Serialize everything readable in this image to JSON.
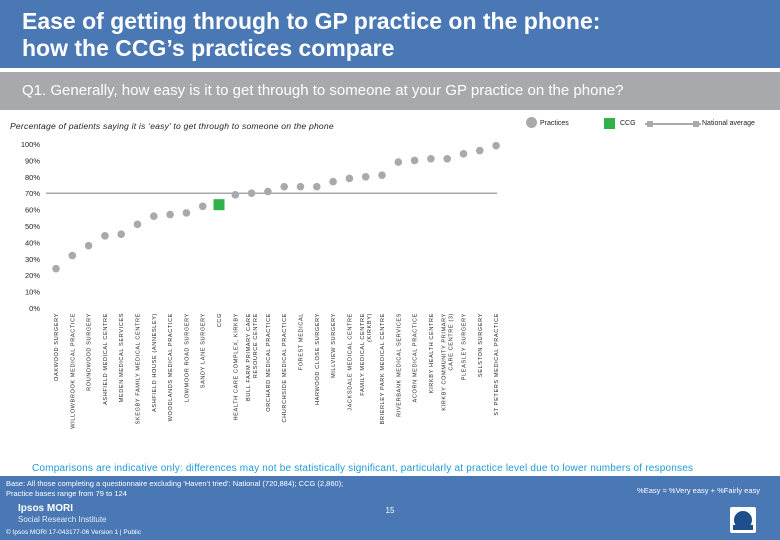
{
  "header": {
    "title_line1": "Ease of getting through to GP practice on the phone:",
    "title_line2": "how the CCG’s practices compare"
  },
  "question": "Q1. Generally, how easy is it to get through to someone at your GP practice on the phone?",
  "subtitle": "Percentage of patients saying it is ‘easy’ to get through to someone on the phone",
  "legend": {
    "practices": "Practices",
    "ccg": "CCG",
    "national": "National average"
  },
  "colors": {
    "practice_dot": "#a7a9ac",
    "ccg_marker": "#2db34a",
    "national_line": "#a7a9ac",
    "header_blue": "#4a78b5",
    "note_blue": "#1a9bd7"
  },
  "chart_data": {
    "type": "scatter",
    "title": "Percentage of patients saying it is ‘easy’ to get through to someone on the phone",
    "ylim": [
      0,
      100
    ],
    "yticks": [
      "0%",
      "10%",
      "20%",
      "30%",
      "40%",
      "50%",
      "60%",
      "70%",
      "80%",
      "90%",
      "100%"
    ],
    "ytick_values": [
      0,
      10,
      20,
      30,
      40,
      50,
      60,
      70,
      80,
      90,
      100
    ],
    "national_average": 70,
    "categories": [
      "OAKWOOD SURGERY",
      "WILLOWBROOK MEDICAL PRACTICE",
      "ROUNDWOOD SURGERY",
      "ASHFIELD MEDICAL CENTRE",
      "MEDEN MEDICAL SERVICES",
      "SKEGBY FAMILY MEDICAL CENTRE",
      "ASHFIELD HOUSE (ANNESLEY)",
      "WOODLANDS MEDICAL PRACTICE",
      "LOWMOOR ROAD SURGERY",
      "SANDY LANE SURGERY",
      "CCG",
      "HEALTH CARE COMPLEX, KIRKBY",
      "BULL FARM PRIMARY CARE RESOURCE CENTRE",
      "ORCHARD MEDICAL PRACTICE",
      "CHURCHSIDE MEDICAL PRACTICE",
      "FOREST MEDICAL",
      "HARWOOD CLOSE SURGERY",
      "MILLVIEW SURGERY",
      "JACKSDALE MEDICAL CENTRE",
      "FAMILY MEDICAL CENTRE (KIRKBY)",
      "BRIERLEY PARK MEDICAL CENTRE",
      "RIVERBANK MEDICAL SERVICES",
      "ACORN MEDICAL PRACTICE",
      "KIRKBY HEALTH CENTRE",
      "KIRKBY COMMUNITY PRIMARY CARE CENTRE (3)",
      "PLEASLEY SURGERY",
      "SELSTON SURGERY",
      "ST PETERS MEDICAL PRACTICE"
    ],
    "values": [
      24,
      32,
      38,
      44,
      45,
      51,
      56,
      57,
      58,
      62,
      63,
      69,
      70,
      71,
      74,
      74,
      74,
      77,
      79,
      80,
      81,
      89,
      90,
      91,
      91,
      94,
      96,
      99
    ],
    "ccg_index": 10
  },
  "notes": {
    "comparison": "Comparisons are indicative only: differences may not be statistically significant, particularly at practice level due to lower numbers of responses",
    "base_line1": "Base: All those completing a questionnaire excluding ‘Haven’t tried’: National (720,884); CCG (2,860);",
    "base_line2": "Practice bases range from 79 to 124",
    "easy_definition": "%Easy = %Very easy + %Fairly easy"
  },
  "footer": {
    "brand_line1": "Ipsos MORI",
    "brand_line2": "Social Research Institute",
    "page_number": "15",
    "copyright": "© Ipsos MORI     17-043177-06 Version 1 | Public"
  }
}
